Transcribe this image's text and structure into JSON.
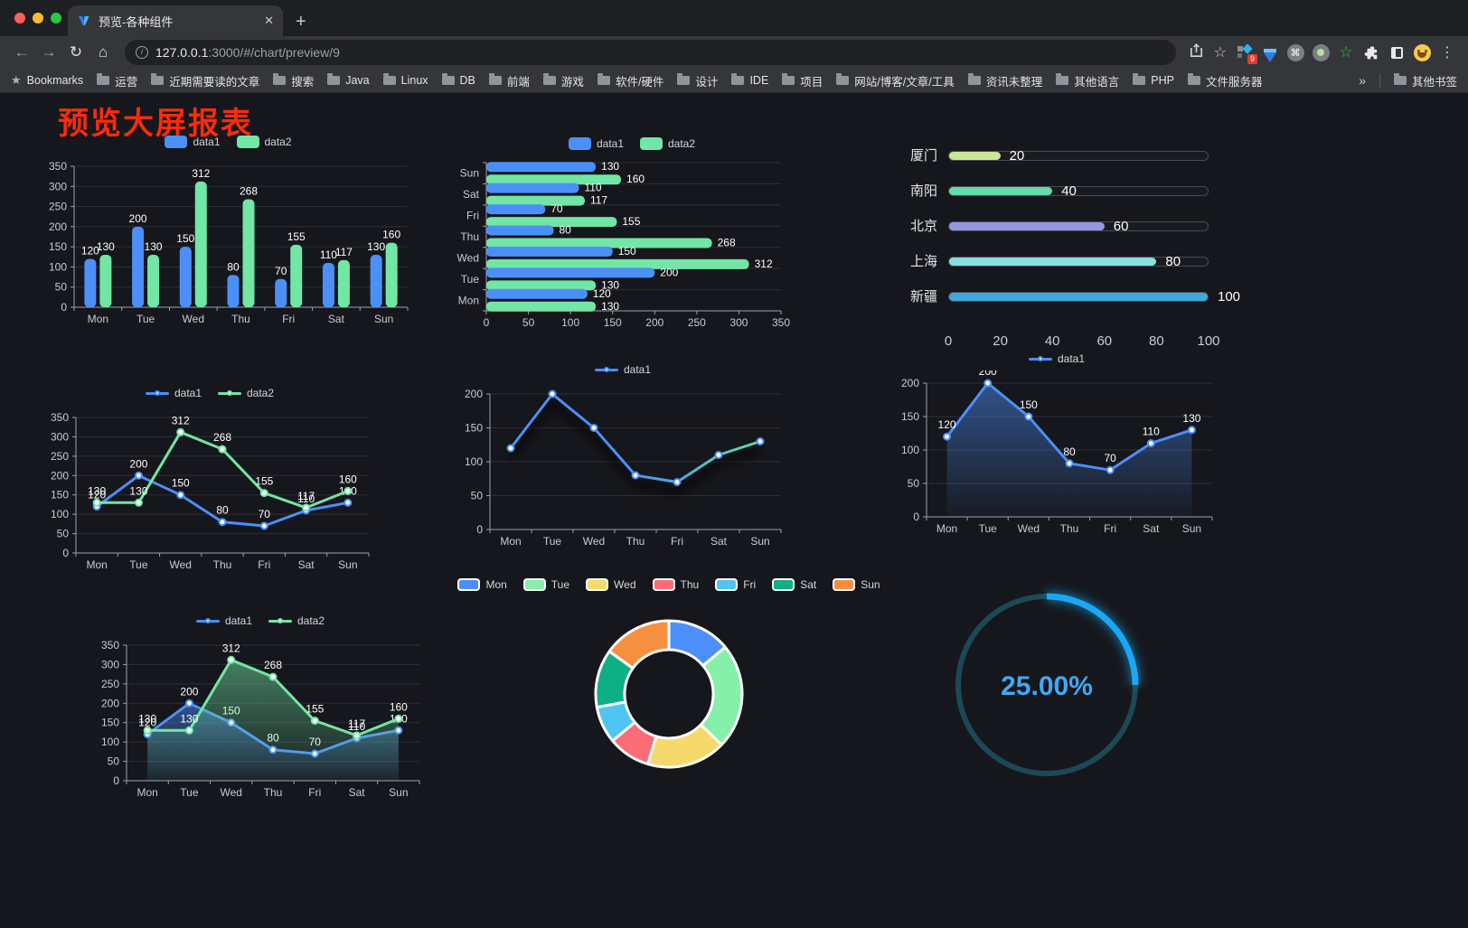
{
  "browser": {
    "tab_title": "预览-各种组件",
    "url_host": "127.0.0.1",
    "url_path": ":3000/#/chart/preview/9",
    "bookmarks_label": "Bookmarks",
    "bookmarks": [
      "运营",
      "近期需要读的文章",
      "搜索",
      "Java",
      "Linux",
      "DB",
      "前端",
      "游戏",
      "软件/硬件",
      "设计",
      "IDE",
      "项目",
      "网站/博客/文章/工具",
      "资讯未整理",
      "其他语言",
      "PHP",
      "文件服务器"
    ],
    "overflow": "»",
    "other_bookmarks": "其他书签",
    "ext_badge": "9"
  },
  "page": {
    "title": "预览大屏报表"
  },
  "chart_data": [
    {
      "id": "grouped-bar-chart",
      "type": "bar",
      "legend": true,
      "value_labels": true,
      "categories": [
        "Mon",
        "Tue",
        "Wed",
        "Thu",
        "Fri",
        "Sat",
        "Sun"
      ],
      "series": [
        {
          "name": "data1",
          "color": "#4C8FFB",
          "values": [
            120,
            200,
            150,
            80,
            70,
            110,
            130
          ]
        },
        {
          "name": "data2",
          "color": "#72E6A4",
          "values": [
            130,
            130,
            312,
            268,
            155,
            117,
            160
          ]
        }
      ],
      "ylim": [
        0,
        350
      ],
      "ystep": 50
    },
    {
      "id": "grouped-hbar-chart",
      "type": "hbar",
      "legend": true,
      "value_labels": true,
      "categories": [
        "Mon",
        "Tue",
        "Wed",
        "Thu",
        "Fri",
        "Sat",
        "Sun"
      ],
      "series": [
        {
          "name": "data1",
          "color": "#4C8FFB",
          "values": [
            120,
            200,
            150,
            80,
            70,
            110,
            130
          ]
        },
        {
          "name": "data2",
          "color": "#72E6A4",
          "values": [
            130,
            130,
            312,
            268,
            155,
            117,
            160
          ]
        }
      ],
      "xlim": [
        0,
        350
      ],
      "xstep": 50
    },
    {
      "id": "city-progress-chart",
      "type": "progress",
      "xlim": [
        0,
        100
      ],
      "xticks": [
        0,
        20,
        40,
        60,
        80,
        100
      ],
      "items": [
        {
          "label": "厦门",
          "value": 20,
          "color": "#C9E69B"
        },
        {
          "label": "南阳",
          "value": 40,
          "color": "#63DCA9"
        },
        {
          "label": "北京",
          "value": 60,
          "color": "#9598DE"
        },
        {
          "label": "上海",
          "value": 80,
          "color": "#8ADFE0"
        },
        {
          "label": "新疆",
          "value": 100,
          "color": "#41A8DC"
        }
      ]
    },
    {
      "id": "two-line-chart",
      "type": "line",
      "legend": true,
      "value_labels": true,
      "categories": [
        "Mon",
        "Tue",
        "Wed",
        "Thu",
        "Fri",
        "Sat",
        "Sun"
      ],
      "series": [
        {
          "name": "data1",
          "color": "#4C8FFB",
          "values": [
            120,
            200,
            150,
            80,
            70,
            110,
            130
          ]
        },
        {
          "name": "data2",
          "color": "#72E6A4",
          "values": [
            130,
            130,
            312,
            268,
            155,
            117,
            160
          ]
        }
      ],
      "ylim": [
        0,
        350
      ],
      "ystep": 50
    },
    {
      "id": "gradient-line-chart",
      "type": "line",
      "legend": true,
      "value_labels": false,
      "shadow": true,
      "categories": [
        "Mon",
        "Tue",
        "Wed",
        "Thu",
        "Fri",
        "Sat",
        "Sun"
      ],
      "series": [
        {
          "name": "data1",
          "color": "#4C8FFB",
          "gradient": [
            "#4C8FFB",
            "#4C8FFB",
            "#5CDFA6"
          ],
          "values": [
            120,
            200,
            150,
            80,
            70,
            110,
            130
          ]
        }
      ],
      "ylim": [
        0,
        200
      ],
      "ystep": 50
    },
    {
      "id": "area-line-chart",
      "type": "line",
      "legend": true,
      "value_labels": true,
      "categories": [
        "Mon",
        "Tue",
        "Wed",
        "Thu",
        "Fri",
        "Sat",
        "Sun"
      ],
      "series": [
        {
          "name": "data1",
          "color": "#4C8FFB",
          "area": true,
          "values": [
            120,
            200,
            150,
            80,
            70,
            110,
            130
          ]
        }
      ],
      "ylim": [
        0,
        200
      ],
      "ystep": 50
    },
    {
      "id": "two-area-line-chart",
      "type": "line",
      "legend": true,
      "value_labels": true,
      "categories": [
        "Mon",
        "Tue",
        "Wed",
        "Thu",
        "Fri",
        "Sat",
        "Sun"
      ],
      "series": [
        {
          "name": "data1",
          "color": "#4C8FFB",
          "area": true,
          "values": [
            120,
            200,
            150,
            80,
            70,
            110,
            130
          ]
        },
        {
          "name": "data2",
          "color": "#72E6A4",
          "area": true,
          "values": [
            130,
            130,
            312,
            268,
            155,
            117,
            160
          ]
        }
      ],
      "ylim": [
        0,
        350
      ],
      "ystep": 50
    },
    {
      "id": "week-donut-chart",
      "type": "pie",
      "items": [
        {
          "label": "Mon",
          "value": 120,
          "color": "#4C8FFB"
        },
        {
          "label": "Tue",
          "value": 200,
          "color": "#86EFA9"
        },
        {
          "label": "Wed",
          "value": 150,
          "color": "#F5D96A"
        },
        {
          "label": "Thu",
          "value": 80,
          "color": "#FA6D77"
        },
        {
          "label": "Fri",
          "value": 70,
          "color": "#4EC5F2"
        },
        {
          "label": "Sat",
          "value": 110,
          "color": "#0FAF85"
        },
        {
          "label": "Sun",
          "value": 130,
          "color": "#F78F41"
        }
      ]
    },
    {
      "id": "percent-gauge",
      "type": "gauge",
      "value": 25,
      "label": "25.00%",
      "color": "#18A8F5",
      "track_color": "#1C4956",
      "text_color": "#3FA9F6"
    }
  ]
}
